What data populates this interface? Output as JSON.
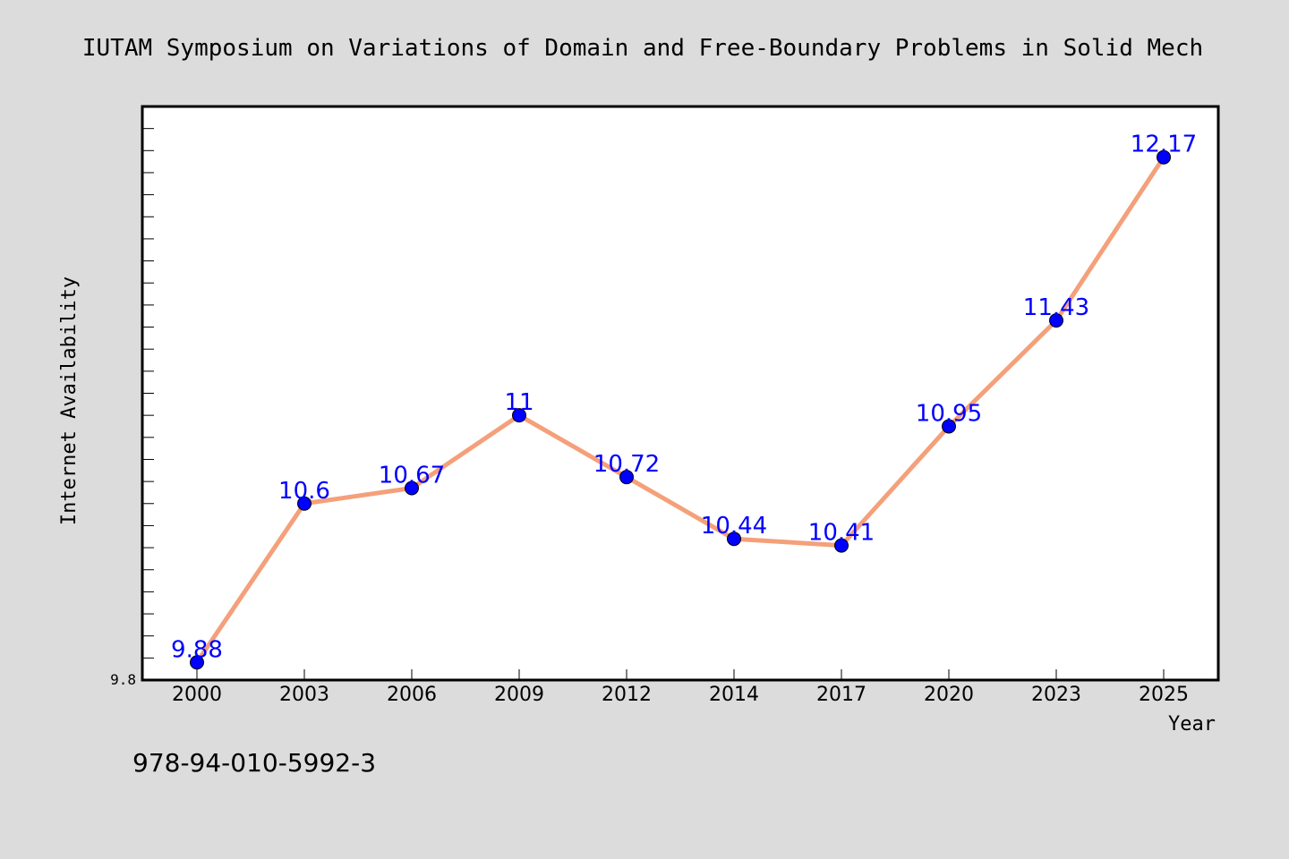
{
  "chart_data": {
    "type": "line",
    "title": "IUTAM Symposium on Variations of Domain and Free-Boundary Problems in Solid Mech",
    "xlabel": "Year",
    "ylabel": "Internet Availability",
    "categories": [
      "2000",
      "2003",
      "2006",
      "2009",
      "2012",
      "2014",
      "2017",
      "2020",
      "2023",
      "2025"
    ],
    "series": [
      {
        "values": [
          9.88,
          10.6,
          10.67,
          11,
          10.72,
          10.44,
          10.41,
          10.95,
          11.43,
          12.17
        ],
        "labels": [
          "9.88",
          "10.6",
          "10.67",
          "11",
          "10.72",
          "10.44",
          "10.41",
          "10.95",
          "11.43",
          "12.17"
        ]
      }
    ],
    "ylim": [
      9.8,
      12.4
    ],
    "y_min_label": "9.8",
    "grid": false,
    "legend": "none",
    "colors": {
      "line": "#f4a07a",
      "marker": "#0000ff",
      "data_label": "#0000ff",
      "background": "#dcdcdc",
      "plot_background": "#ffffff"
    }
  },
  "footer": {
    "isbn": "978-94-010-5992-3"
  }
}
